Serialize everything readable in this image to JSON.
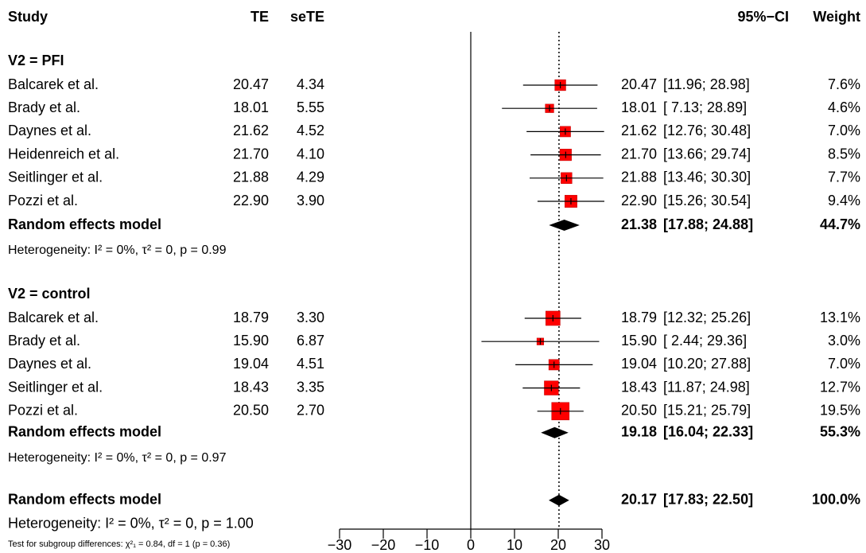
{
  "chart_data": {
    "type": "forest",
    "columns": {
      "study": "Study",
      "te": "TE",
      "sete": "seTE",
      "ci": "95%−CI",
      "weight": "Weight"
    },
    "groups": [
      {
        "label": "V2 = PFI",
        "studies": [
          {
            "study": "Balcarek et al.",
            "te": 20.47,
            "te_label": "20.47",
            "sete": "4.34",
            "lower": 11.96,
            "upper": 28.98,
            "ci_label": "[11.96; 28.98]",
            "weight": 7.6,
            "weight_label": "7.6%"
          },
          {
            "study": "Brady et al.",
            "te": 18.01,
            "te_label": "18.01",
            "sete": "5.55",
            "lower": 7.13,
            "upper": 28.89,
            "ci_label": "[ 7.13; 28.89]",
            "weight": 4.6,
            "weight_label": "4.6%"
          },
          {
            "study": "Daynes et al.",
            "te": 21.62,
            "te_label": "21.62",
            "sete": "4.52",
            "lower": 12.76,
            "upper": 30.48,
            "ci_label": "[12.76; 30.48]",
            "weight": 7.0,
            "weight_label": "7.0%"
          },
          {
            "study": "Heidenreich et al.",
            "te": 21.7,
            "te_label": "21.70",
            "sete": "4.10",
            "lower": 13.66,
            "upper": 29.74,
            "ci_label": "[13.66; 29.74]",
            "weight": 8.5,
            "weight_label": "8.5%"
          },
          {
            "study": "Seitlinger et al.",
            "te": 21.88,
            "te_label": "21.88",
            "sete": "4.29",
            "lower": 13.46,
            "upper": 30.3,
            "ci_label": "[13.46; 30.30]",
            "weight": 7.7,
            "weight_label": "7.7%"
          },
          {
            "study": "Pozzi et al.",
            "te": 22.9,
            "te_label": "22.90",
            "sete": "3.90",
            "lower": 15.26,
            "upper": 30.54,
            "ci_label": "[15.26; 30.54]",
            "weight": 9.4,
            "weight_label": "9.4%"
          }
        ],
        "model": {
          "label": "Random effects model",
          "te": 21.38,
          "te_label": "21.38",
          "lower": 17.88,
          "upper": 24.88,
          "ci_label": "[17.88; 24.88]",
          "weight": 44.7,
          "weight_label": "44.7%"
        },
        "heterogeneity": "Heterogeneity: I² = 0%, τ² = 0, p = 0.99"
      },
      {
        "label": "V2 = control",
        "studies": [
          {
            "study": "Balcarek et al.",
            "te": 18.79,
            "te_label": "18.79",
            "sete": "3.30",
            "lower": 12.32,
            "upper": 25.26,
            "ci_label": "[12.32; 25.26]",
            "weight": 13.1,
            "weight_label": "13.1%"
          },
          {
            "study": "Brady et al.",
            "te": 15.9,
            "te_label": "15.90",
            "sete": "6.87",
            "lower": 2.44,
            "upper": 29.36,
            "ci_label": "[ 2.44; 29.36]",
            "weight": 3.0,
            "weight_label": "3.0%"
          },
          {
            "study": "Daynes et al.",
            "te": 19.04,
            "te_label": "19.04",
            "sete": "4.51",
            "lower": 10.2,
            "upper": 27.88,
            "ci_label": "[10.20; 27.88]",
            "weight": 7.0,
            "weight_label": "7.0%"
          },
          {
            "study": "Seitlinger et al.",
            "te": 18.43,
            "te_label": "18.43",
            "sete": "3.35",
            "lower": 11.87,
            "upper": 24.98,
            "ci_label": "[11.87; 24.98]",
            "weight": 12.7,
            "weight_label": "12.7%"
          },
          {
            "study": "Pozzi et al.",
            "te": 20.5,
            "te_label": "20.50",
            "sete": "2.70",
            "lower": 15.21,
            "upper": 25.79,
            "ci_label": "[15.21; 25.79]",
            "weight": 19.5,
            "weight_label": "19.5%"
          }
        ],
        "model": {
          "label": "Random effects model",
          "te": 19.18,
          "te_label": "19.18",
          "lower": 16.04,
          "upper": 22.33,
          "ci_label": "[16.04; 22.33]",
          "weight": 55.3,
          "weight_label": "55.3%"
        },
        "heterogeneity": "Heterogeneity: I² = 0%, τ² = 0, p = 0.97"
      }
    ],
    "overall": {
      "label": "Random effects model",
      "te": 20.17,
      "te_label": "20.17",
      "lower": 17.83,
      "upper": 22.5,
      "ci_label": "[17.83; 22.50]",
      "weight": 100.0,
      "weight_label": "100.0%",
      "heterogeneity": "Heterogeneity: I² = 0%, τ² = 0, p = 1.00"
    },
    "subgroup_test": "Test for subgroup differences: χ²₁ = 0.84, df = 1 (p = 0.36)",
    "xlim": [
      -30,
      30
    ],
    "xticks": [
      {
        "value": -30,
        "label": "−30"
      },
      {
        "value": -20,
        "label": "−20"
      },
      {
        "value": -10,
        "label": "−10"
      },
      0,
      10,
      20,
      30
    ],
    "reference_line": 0,
    "square_color": "#ff0000",
    "subgroup_color": "#8c8c8c"
  }
}
